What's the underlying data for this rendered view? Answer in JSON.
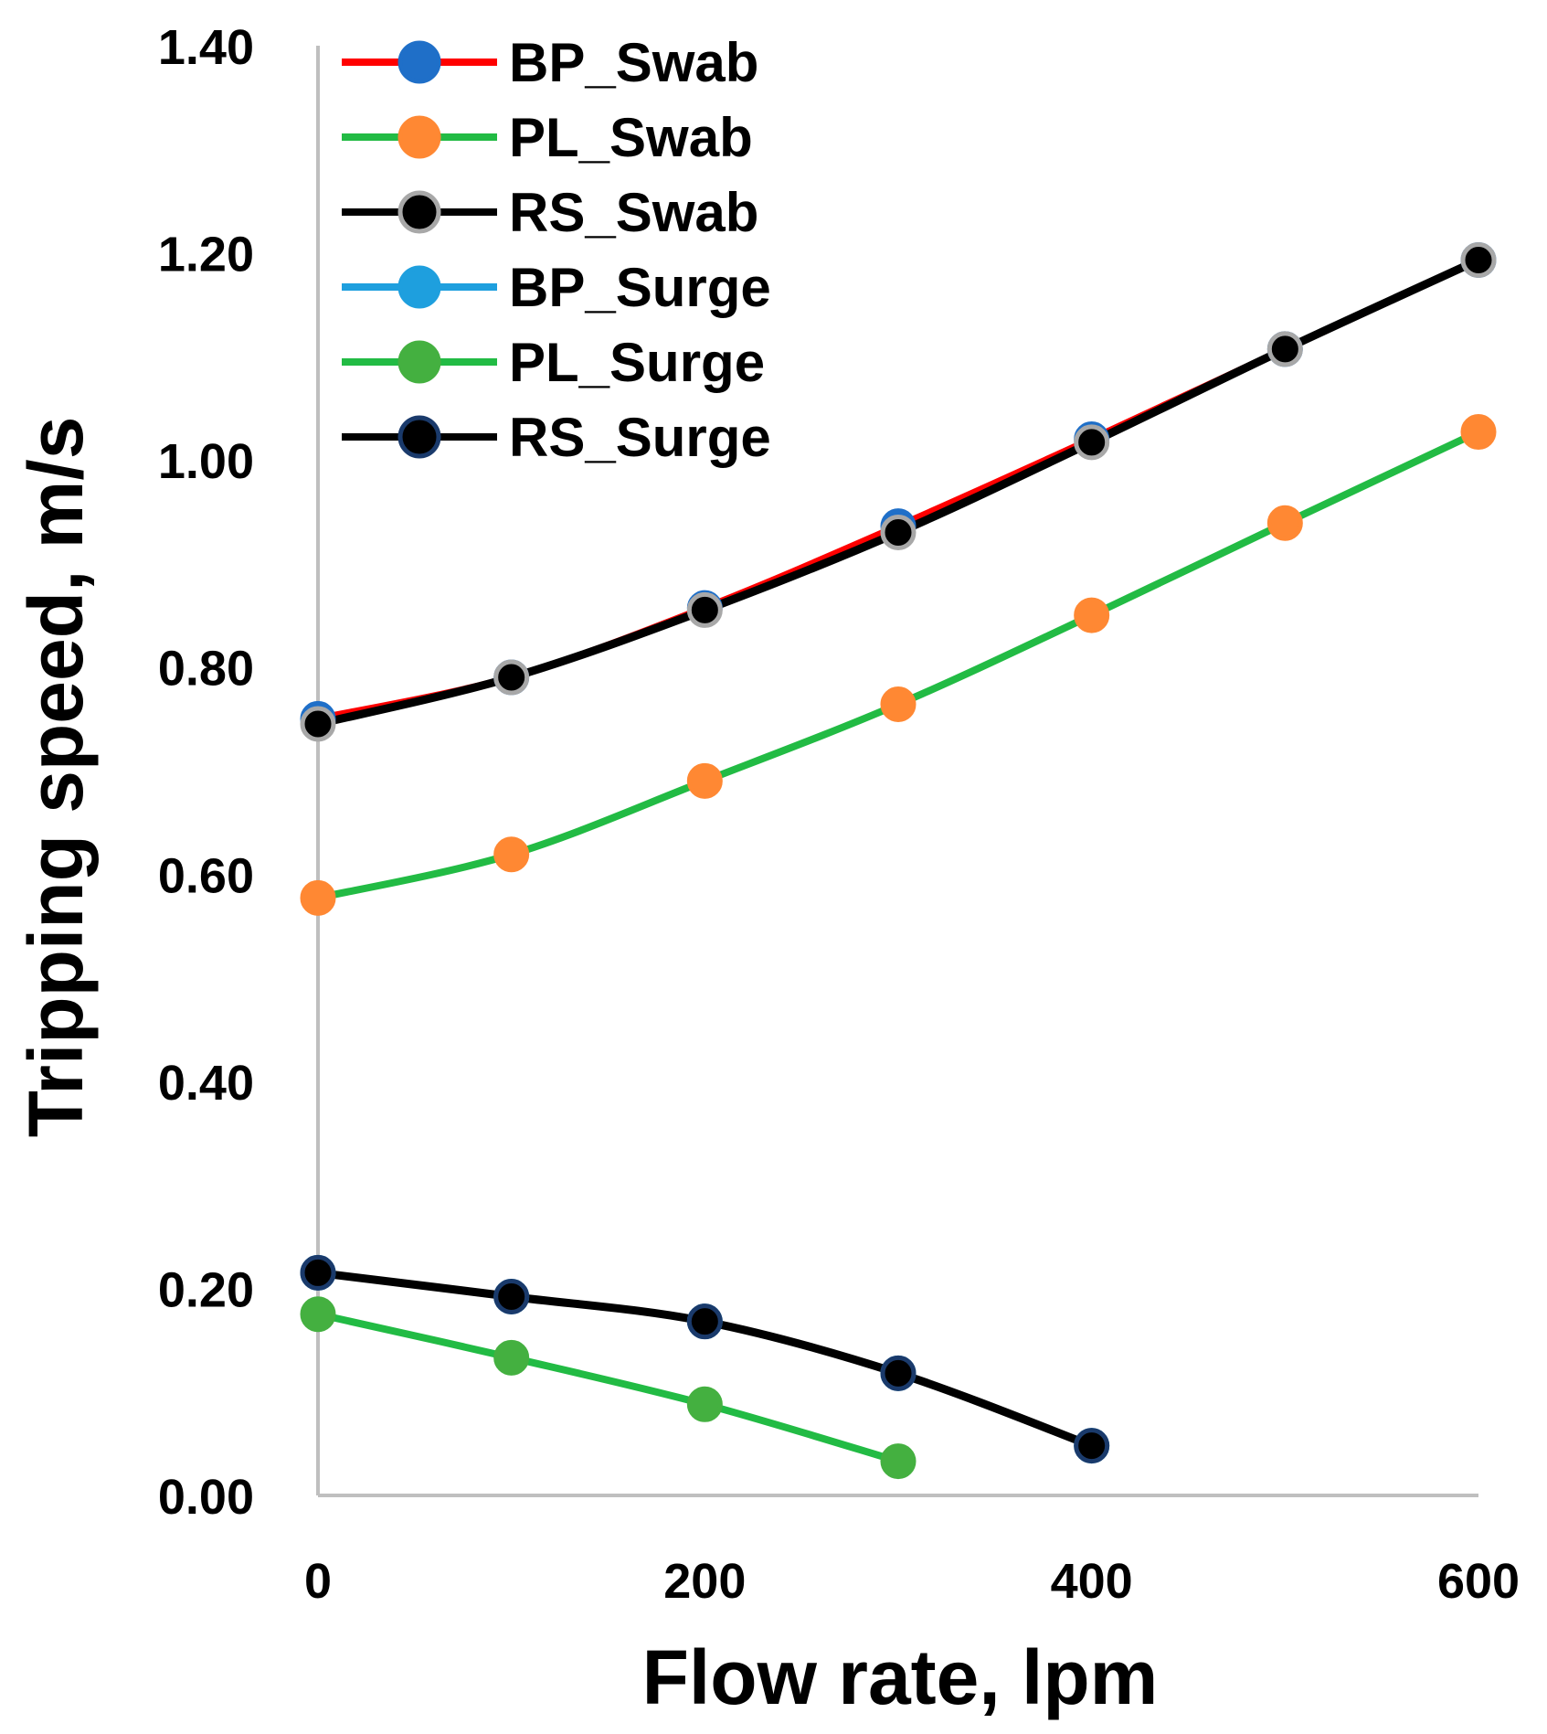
{
  "chart_data": {
    "type": "line",
    "title": "",
    "xlabel": "Flow rate, lpm",
    "ylabel": "Tripping speed, m/s",
    "xlim": [
      0,
      600
    ],
    "ylim": [
      0,
      1.4
    ],
    "xticks": [
      0,
      200,
      400,
      600
    ],
    "yticks": [
      0.0,
      0.2,
      0.4,
      0.6,
      0.8,
      1.0,
      1.2,
      1.4
    ],
    "xtick_labels": [
      "0",
      "200",
      "400",
      "600"
    ],
    "ytick_labels": [
      "0.00",
      "0.20",
      "0.40",
      "0.60",
      "0.80",
      "1.00",
      "1.20",
      "1.40"
    ],
    "grid": false,
    "legend_position": "top-left",
    "series": [
      {
        "name": "BP_Swab",
        "line_color": "#ff0000",
        "marker_fill": "#1f6fc8",
        "marker_edge": "#1f6fc8",
        "x": [
          0,
          100,
          200,
          300,
          400,
          500,
          600
        ],
        "y": [
          0.75,
          0.79,
          0.857,
          0.936,
          1.02,
          1.107,
          1.193
        ]
      },
      {
        "name": "PL_Swab",
        "line_color": "#22bb44",
        "marker_fill": "#ff8833",
        "marker_edge": "#ff8833",
        "x": [
          0,
          100,
          200,
          300,
          400,
          500,
          600
        ],
        "y": [
          0.577,
          0.619,
          0.69,
          0.764,
          0.85,
          0.939,
          1.027
        ]
      },
      {
        "name": "RS_Swab",
        "line_color": "#000000",
        "marker_fill": "#000000",
        "marker_edge": "#a8a8a8",
        "x": [
          0,
          100,
          200,
          300,
          400,
          500,
          600
        ],
        "y": [
          0.745,
          0.79,
          0.855,
          0.93,
          1.017,
          1.107,
          1.193
        ]
      },
      {
        "name": "BP_Surge",
        "line_color": "#1e9fde",
        "marker_fill": "#1e9fde",
        "marker_edge": "#1e9fde",
        "x": [
          0,
          100,
          200,
          300,
          400
        ],
        "y": [
          0.215,
          0.192,
          0.168,
          0.118,
          0.048
        ]
      },
      {
        "name": "PL_Surge",
        "line_color": "#22bb44",
        "marker_fill": "#44b040",
        "marker_edge": "#44b040",
        "x": [
          0,
          100,
          200,
          300
        ],
        "y": [
          0.175,
          0.133,
          0.088,
          0.033
        ]
      },
      {
        "name": "RS_Surge",
        "line_color": "#000000",
        "marker_fill": "#000000",
        "marker_edge": "#1a3a6b",
        "x": [
          0,
          100,
          200,
          300,
          400
        ],
        "y": [
          0.215,
          0.192,
          0.168,
          0.118,
          0.048
        ]
      }
    ]
  }
}
